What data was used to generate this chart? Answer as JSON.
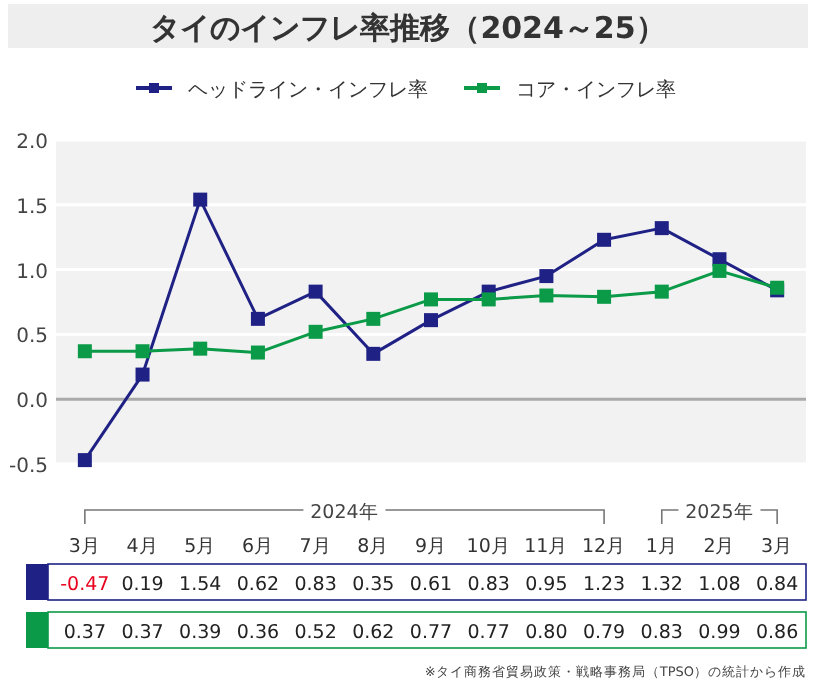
{
  "chart_data": {
    "type": "line",
    "title": "タイのインフレ率推移（2024～25）",
    "categories": [
      "3月",
      "4月",
      "5月",
      "6月",
      "7月",
      "8月",
      "9月",
      "10月",
      "11月",
      "12月",
      "1月",
      "2月",
      "3月"
    ],
    "series": [
      {
        "name": "ヘッドライン・インフレ率",
        "color": "#1f2185",
        "values": [
          -0.47,
          0.19,
          1.54,
          0.62,
          0.83,
          0.35,
          0.61,
          0.83,
          0.95,
          1.23,
          1.32,
          1.08,
          0.84
        ],
        "value_labels": [
          "-0.47",
          "0.19",
          "1.54",
          "0.62",
          "0.83",
          "0.35",
          "0.61",
          "0.83",
          "0.95",
          "1.23",
          "1.32",
          "1.08",
          "0.84"
        ]
      },
      {
        "name": "コア・インフレ率",
        "color": "#0a9a48",
        "values": [
          0.37,
          0.37,
          0.39,
          0.36,
          0.52,
          0.62,
          0.77,
          0.77,
          0.8,
          0.79,
          0.83,
          0.99,
          0.86
        ],
        "value_labels": [
          "0.37",
          "0.37",
          "0.39",
          "0.36",
          "0.52",
          "0.62",
          "0.77",
          "0.77",
          "0.80",
          "0.79",
          "0.83",
          "0.99",
          "0.86"
        ]
      }
    ],
    "ylim": [
      -0.5,
      2.0
    ],
    "yticks": [
      "-0.5",
      "0.0",
      "0.5",
      "1.0",
      "1.5",
      "2.0"
    ],
    "grid": "y",
    "legend": "top",
    "marker": "square",
    "annotations": [
      "2024年",
      "2025年",
      "※タイ商務省貿易政策・戦略事務局（TPSO）の統計から作成"
    ]
  }
}
